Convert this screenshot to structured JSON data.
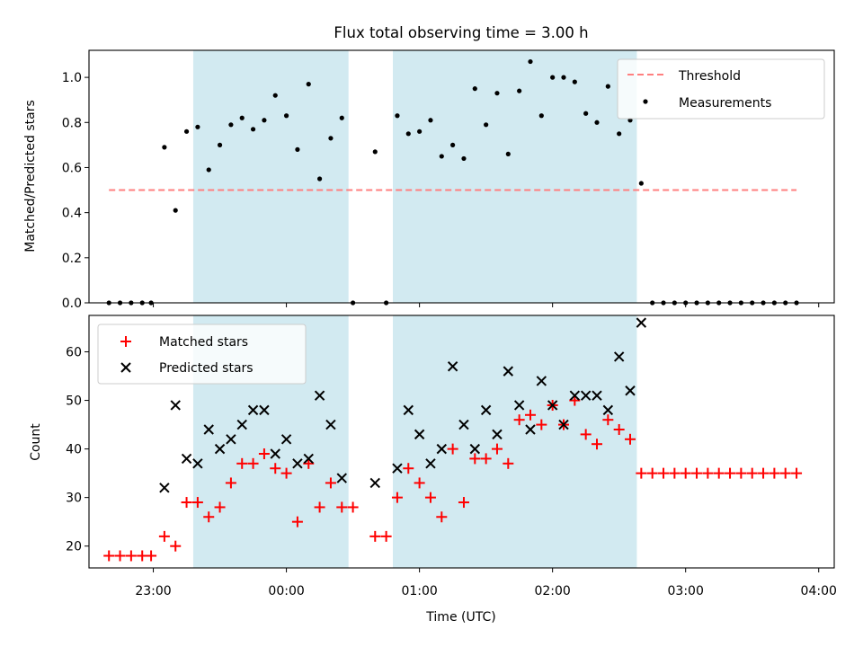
{
  "chart_data": [
    {
      "type": "scatter",
      "title": "Flux total observing time = 3.00 h",
      "ylabel": "Matched/Predicted stars",
      "ylim": [
        0,
        1.12
      ],
      "yticks": [
        0.0,
        0.2,
        0.4,
        0.6,
        0.8,
        1.0
      ],
      "ytick_labels": [
        "0.0",
        "0.2",
        "0.4",
        "0.6",
        "0.8",
        "1.0"
      ],
      "legend_position": "top-right",
      "threshold": {
        "name": "Threshold",
        "value": 0.5,
        "x_start": "22:40",
        "x_end": "03:50",
        "color": "#ff7f7f"
      },
      "series": [
        {
          "name": "Measurements",
          "color": "#000000",
          "points": [
            [
              "22:40",
              0
            ],
            [
              "22:45",
              0
            ],
            [
              "22:50",
              0
            ],
            [
              "22:55",
              0
            ],
            [
              "22:59",
              0
            ],
            [
              "23:05",
              0.69
            ],
            [
              "23:10",
              0.41
            ],
            [
              "23:15",
              0.76
            ],
            [
              "23:20",
              0.78
            ],
            [
              "23:25",
              0.59
            ],
            [
              "23:30",
              0.7
            ],
            [
              "23:35",
              0.79
            ],
            [
              "23:40",
              0.82
            ],
            [
              "23:45",
              0.77
            ],
            [
              "23:50",
              0.81
            ],
            [
              "23:55",
              0.92
            ],
            [
              "00:00",
              0.83
            ],
            [
              "00:05",
              0.68
            ],
            [
              "00:10",
              0.97
            ],
            [
              "00:15",
              0.55
            ],
            [
              "00:20",
              0.73
            ],
            [
              "00:25",
              0.82
            ],
            [
              "00:30",
              0
            ],
            [
              "00:40",
              0.67
            ],
            [
              "00:45",
              0
            ],
            [
              "00:50",
              0.83
            ],
            [
              "00:55",
              0.75
            ],
            [
              "01:00",
              0.76
            ],
            [
              "01:05",
              0.81
            ],
            [
              "01:10",
              0.65
            ],
            [
              "01:15",
              0.7
            ],
            [
              "01:20",
              0.64
            ],
            [
              "01:25",
              0.95
            ],
            [
              "01:30",
              0.79
            ],
            [
              "01:35",
              0.93
            ],
            [
              "01:40",
              0.66
            ],
            [
              "01:45",
              0.94
            ],
            [
              "01:50",
              1.07
            ],
            [
              "01:55",
              0.83
            ],
            [
              "02:00",
              1.0
            ],
            [
              "02:05",
              1.0
            ],
            [
              "02:10",
              0.98
            ],
            [
              "02:15",
              0.84
            ],
            [
              "02:20",
              0.8
            ],
            [
              "02:25",
              0.96
            ],
            [
              "02:30",
              0.75
            ],
            [
              "02:35",
              0.81
            ],
            [
              "02:40",
              0.53
            ],
            [
              "02:45",
              0
            ],
            [
              "02:50",
              0
            ],
            [
              "02:55",
              0
            ],
            [
              "03:00",
              0
            ],
            [
              "03:05",
              0
            ],
            [
              "03:10",
              0
            ],
            [
              "03:15",
              0
            ],
            [
              "03:20",
              0
            ],
            [
              "03:25",
              0
            ],
            [
              "03:30",
              0
            ],
            [
              "03:35",
              0
            ],
            [
              "03:40",
              0
            ],
            [
              "03:45",
              0
            ],
            [
              "03:50",
              0
            ]
          ]
        }
      ]
    },
    {
      "type": "scatter",
      "xlabel": "Time (UTC)",
      "ylabel": "Count",
      "ylim": [
        15.5,
        67.5
      ],
      "yticks": [
        20,
        30,
        40,
        50,
        60
      ],
      "ytick_labels": [
        "20",
        "30",
        "40",
        "50",
        "60"
      ],
      "xlim": [
        "22:31",
        "04:07"
      ],
      "xticks": [
        "23:00",
        "00:00",
        "01:00",
        "02:00",
        "03:00",
        "04:00"
      ],
      "xtick_labels": [
        "23:00",
        "00:00",
        "01:00",
        "02:00",
        "03:00",
        "04:00"
      ],
      "legend_position": "top-left",
      "shaded_intervals": [
        [
          "23:18",
          "00:28"
        ],
        [
          "00:48",
          "02:38"
        ]
      ],
      "shade_color": "#add8e6",
      "series": [
        {
          "name": "Matched stars",
          "color": "#ff0000",
          "marker": "plus",
          "points": [
            [
              "22:40",
              18
            ],
            [
              "22:45",
              18
            ],
            [
              "22:50",
              18
            ],
            [
              "22:55",
              18
            ],
            [
              "22:59",
              18
            ],
            [
              "23:05",
              22
            ],
            [
              "23:10",
              20
            ],
            [
              "23:15",
              29
            ],
            [
              "23:20",
              29
            ],
            [
              "23:25",
              26
            ],
            [
              "23:30",
              28
            ],
            [
              "23:35",
              33
            ],
            [
              "23:40",
              37
            ],
            [
              "23:45",
              37
            ],
            [
              "23:50",
              39
            ],
            [
              "23:55",
              36
            ],
            [
              "00:00",
              35
            ],
            [
              "00:05",
              25
            ],
            [
              "00:10",
              37
            ],
            [
              "00:15",
              28
            ],
            [
              "00:20",
              33
            ],
            [
              "00:25",
              28
            ],
            [
              "00:30",
              28
            ],
            [
              "00:40",
              22
            ],
            [
              "00:45",
              22
            ],
            [
              "00:50",
              30
            ],
            [
              "00:55",
              36
            ],
            [
              "01:00",
              33
            ],
            [
              "01:05",
              30
            ],
            [
              "01:10",
              26
            ],
            [
              "01:15",
              40
            ],
            [
              "01:20",
              29
            ],
            [
              "01:25",
              38
            ],
            [
              "01:30",
              38
            ],
            [
              "01:35",
              40
            ],
            [
              "01:40",
              37
            ],
            [
              "01:45",
              46
            ],
            [
              "01:50",
              47
            ],
            [
              "01:55",
              45
            ],
            [
              "02:00",
              49
            ],
            [
              "02:05",
              45
            ],
            [
              "02:10",
              50
            ],
            [
              "02:15",
              43
            ],
            [
              "02:20",
              41
            ],
            [
              "02:25",
              46
            ],
            [
              "02:30",
              44
            ],
            [
              "02:35",
              42
            ],
            [
              "02:40",
              35
            ],
            [
              "02:45",
              35
            ],
            [
              "02:50",
              35
            ],
            [
              "02:55",
              35
            ],
            [
              "03:00",
              35
            ],
            [
              "03:05",
              35
            ],
            [
              "03:10",
              35
            ],
            [
              "03:15",
              35
            ],
            [
              "03:20",
              35
            ],
            [
              "03:25",
              35
            ],
            [
              "03:30",
              35
            ],
            [
              "03:35",
              35
            ],
            [
              "03:40",
              35
            ],
            [
              "03:45",
              35
            ],
            [
              "03:50",
              35
            ]
          ]
        },
        {
          "name": "Predicted stars",
          "color": "#000000",
          "marker": "x",
          "points": [
            [
              "23:05",
              32
            ],
            [
              "23:10",
              49
            ],
            [
              "23:15",
              38
            ],
            [
              "23:20",
              37
            ],
            [
              "23:25",
              44
            ],
            [
              "23:30",
              40
            ],
            [
              "23:35",
              42
            ],
            [
              "23:40",
              45
            ],
            [
              "23:45",
              48
            ],
            [
              "23:50",
              48
            ],
            [
              "23:55",
              39
            ],
            [
              "00:00",
              42
            ],
            [
              "00:05",
              37
            ],
            [
              "00:10",
              38
            ],
            [
              "00:15",
              51
            ],
            [
              "00:20",
              45
            ],
            [
              "00:25",
              34
            ],
            [
              "00:40",
              33
            ],
            [
              "00:50",
              36
            ],
            [
              "00:55",
              48
            ],
            [
              "01:00",
              43
            ],
            [
              "01:05",
              37
            ],
            [
              "01:10",
              40
            ],
            [
              "01:15",
              57
            ],
            [
              "01:20",
              45
            ],
            [
              "01:25",
              40
            ],
            [
              "01:30",
              48
            ],
            [
              "01:35",
              43
            ],
            [
              "01:40",
              56
            ],
            [
              "01:45",
              49
            ],
            [
              "01:50",
              44
            ],
            [
              "01:55",
              54
            ],
            [
              "02:00",
              49
            ],
            [
              "02:05",
              45
            ],
            [
              "02:10",
              51
            ],
            [
              "02:15",
              51
            ],
            [
              "02:20",
              51
            ],
            [
              "02:25",
              48
            ],
            [
              "02:30",
              59
            ],
            [
              "02:35",
              52
            ],
            [
              "02:40",
              66
            ]
          ]
        }
      ]
    }
  ]
}
